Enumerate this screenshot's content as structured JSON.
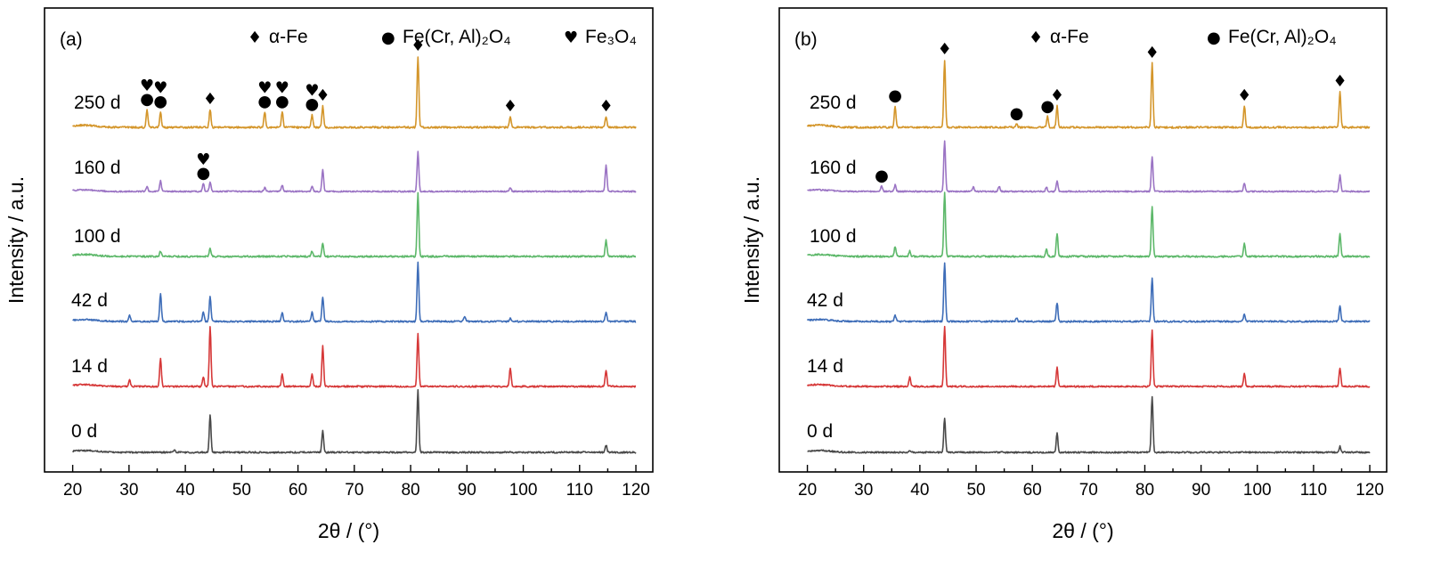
{
  "chart_data": [
    {
      "type": "line",
      "panel_label": "(a)",
      "xlabel": "2θ / (°)",
      "ylabel": "Intensity / a.u.",
      "xlim": [
        15,
        123
      ],
      "xticks": [
        20,
        30,
        40,
        50,
        60,
        70,
        80,
        90,
        100,
        110,
        120
      ],
      "legend": [
        {
          "symbol": "♦",
          "name": "α-Fe"
        },
        {
          "symbol": "●",
          "name": "Fe(Cr, Al)₂O₄"
        },
        {
          "symbol": "♥",
          "name": "Fe₃O₄"
        }
      ],
      "series": [
        {
          "name": "250 d",
          "color": "#D4962B",
          "peaks": [
            [
              33.2,
              0.25
            ],
            [
              35.6,
              0.22
            ],
            [
              44.4,
              0.25
            ],
            [
              54.1,
              0.22
            ],
            [
              57.2,
              0.22
            ],
            [
              62.5,
              0.18
            ],
            [
              64.4,
              0.3
            ],
            [
              81.3,
              1.0
            ],
            [
              97.7,
              0.15
            ],
            [
              114.7,
              0.15
            ]
          ]
        },
        {
          "name": "160 d",
          "color": "#9B74C4",
          "peaks": [
            [
              33.2,
              0.1
            ],
            [
              35.6,
              0.2
            ],
            [
              43.2,
              0.15
            ],
            [
              44.4,
              0.18
            ],
            [
              54.1,
              0.07
            ],
            [
              57.2,
              0.12
            ],
            [
              62.5,
              0.1
            ],
            [
              64.4,
              0.4
            ],
            [
              81.3,
              0.75
            ],
            [
              97.7,
              0.07
            ],
            [
              114.7,
              0.5
            ]
          ]
        },
        {
          "name": "100 d",
          "color": "#5DB86A",
          "peaks": [
            [
              35.6,
              0.08
            ],
            [
              44.4,
              0.12
            ],
            [
              62.5,
              0.08
            ],
            [
              64.4,
              0.2
            ],
            [
              81.3,
              0.95
            ],
            [
              114.7,
              0.25
            ]
          ]
        },
        {
          "name": "42 d",
          "color": "#3E6DB8",
          "peaks": [
            [
              30.1,
              0.1
            ],
            [
              35.6,
              0.45
            ],
            [
              43.2,
              0.15
            ],
            [
              44.4,
              0.4
            ],
            [
              57.2,
              0.15
            ],
            [
              62.5,
              0.15
            ],
            [
              64.4,
              0.4
            ],
            [
              81.3,
              0.95
            ],
            [
              89.6,
              0.08
            ],
            [
              97.7,
              0.05
            ],
            [
              114.7,
              0.15
            ]
          ]
        },
        {
          "name": "14 d",
          "color": "#D63838",
          "peaks": [
            [
              30.1,
              0.1
            ],
            [
              35.6,
              0.45
            ],
            [
              43.2,
              0.15
            ],
            [
              44.4,
              0.95
            ],
            [
              57.2,
              0.2
            ],
            [
              62.5,
              0.2
            ],
            [
              64.4,
              0.65
            ],
            [
              81.3,
              0.85
            ],
            [
              97.7,
              0.3
            ],
            [
              114.7,
              0.25
            ]
          ]
        },
        {
          "name": "0 d",
          "color": "#4A4A4A",
          "peaks": [
            [
              38.1,
              0.05
            ],
            [
              44.4,
              0.6
            ],
            [
              64.4,
              0.35
            ],
            [
              81.3,
              1.0
            ],
            [
              114.7,
              0.12
            ]
          ]
        }
      ]
    },
    {
      "type": "line",
      "panel_label": "(b)",
      "xlabel": "2θ / (°)",
      "ylabel": "Intensity / a.u.",
      "xlim": [
        15,
        123
      ],
      "xticks": [
        20,
        30,
        40,
        50,
        60,
        70,
        80,
        90,
        100,
        110,
        120
      ],
      "legend": [
        {
          "symbol": "♦",
          "name": "α-Fe"
        },
        {
          "symbol": "●",
          "name": "Fe(Cr, Al)₂O₄"
        }
      ],
      "series": [
        {
          "name": "250 d",
          "color": "#D4962B",
          "peaks": [
            [
              35.6,
              0.3
            ],
            [
              44.4,
              0.95
            ],
            [
              57.2,
              0.05
            ],
            [
              62.7,
              0.15
            ],
            [
              64.4,
              0.3
            ],
            [
              81.3,
              0.9
            ],
            [
              97.7,
              0.3
            ],
            [
              114.7,
              0.5
            ]
          ]
        },
        {
          "name": "160 d",
          "color": "#9B74C4",
          "peaks": [
            [
              33.2,
              0.1
            ],
            [
              35.6,
              0.12
            ],
            [
              44.4,
              0.95
            ],
            [
              49.5,
              0.08
            ],
            [
              54.1,
              0.1
            ],
            [
              62.5,
              0.08
            ],
            [
              64.4,
              0.2
            ],
            [
              81.3,
              0.65
            ],
            [
              97.7,
              0.15
            ],
            [
              114.7,
              0.3
            ]
          ]
        },
        {
          "name": "100 d",
          "color": "#5DB86A",
          "peaks": [
            [
              35.6,
              0.15
            ],
            [
              38.2,
              0.08
            ],
            [
              44.4,
              0.95
            ],
            [
              62.5,
              0.1
            ],
            [
              64.4,
              0.35
            ],
            [
              81.3,
              0.75
            ],
            [
              97.7,
              0.2
            ],
            [
              114.7,
              0.35
            ]
          ]
        },
        {
          "name": "42 d",
          "color": "#3E6DB8",
          "peaks": [
            [
              35.6,
              0.1
            ],
            [
              44.4,
              0.95
            ],
            [
              57.2,
              0.05
            ],
            [
              64.4,
              0.3
            ],
            [
              81.3,
              0.7
            ],
            [
              97.7,
              0.12
            ],
            [
              114.7,
              0.25
            ]
          ]
        },
        {
          "name": "14 d",
          "color": "#D63838",
          "peaks": [
            [
              38.2,
              0.15
            ],
            [
              44.4,
              0.95
            ],
            [
              64.4,
              0.3
            ],
            [
              81.3,
              0.9
            ],
            [
              97.7,
              0.2
            ],
            [
              114.7,
              0.3
            ]
          ]
        },
        {
          "name": "0 d",
          "color": "#4A4A4A",
          "peaks": [
            [
              38.2,
              0.03
            ],
            [
              44.4,
              0.55
            ],
            [
              64.4,
              0.3
            ],
            [
              81.3,
              0.9
            ],
            [
              114.7,
              0.1
            ]
          ]
        }
      ]
    }
  ],
  "annotations": [
    [
      {
        "series": "250 d",
        "x": 33.2,
        "symbols": [
          "♥",
          "●"
        ]
      },
      {
        "series": "250 d",
        "x": 35.6,
        "symbols": [
          "♥",
          "●"
        ]
      },
      {
        "series": "250 d",
        "x": 44.4,
        "symbols": [
          "♦"
        ]
      },
      {
        "series": "250 d",
        "x": 54.1,
        "symbols": [
          "♥",
          "●"
        ]
      },
      {
        "series": "250 d",
        "x": 57.2,
        "symbols": [
          "♥",
          "●"
        ]
      },
      {
        "series": "250 d",
        "x": 62.5,
        "symbols": [
          "♥",
          "●"
        ]
      },
      {
        "series": "250 d",
        "x": 64.4,
        "symbols": [
          "♦"
        ]
      },
      {
        "series": "250 d",
        "x": 81.3,
        "symbols": [
          "♦"
        ]
      },
      {
        "series": "250 d",
        "x": 97.7,
        "symbols": [
          "♦"
        ]
      },
      {
        "series": "250 d",
        "x": 114.7,
        "symbols": [
          "♦"
        ]
      },
      {
        "series": "160 d",
        "x": 43.2,
        "symbols": [
          "♥",
          "●"
        ]
      }
    ],
    [
      {
        "series": "250 d",
        "x": 35.6,
        "symbols": [
          "●"
        ]
      },
      {
        "series": "250 d",
        "x": 44.4,
        "symbols": [
          "♦"
        ]
      },
      {
        "series": "250 d",
        "x": 57.2,
        "symbols": [
          "●"
        ]
      },
      {
        "series": "250 d",
        "x": 62.7,
        "symbols": [
          "●"
        ]
      },
      {
        "series": "250 d",
        "x": 64.4,
        "symbols": [
          "♦"
        ]
      },
      {
        "series": "250 d",
        "x": 81.3,
        "symbols": [
          "♦"
        ]
      },
      {
        "series": "250 d",
        "x": 97.7,
        "symbols": [
          "♦"
        ]
      },
      {
        "series": "250 d",
        "x": 114.7,
        "symbols": [
          "♦"
        ]
      },
      {
        "series": "160 d",
        "x": 33.2,
        "symbols": [
          "●"
        ]
      }
    ]
  ]
}
